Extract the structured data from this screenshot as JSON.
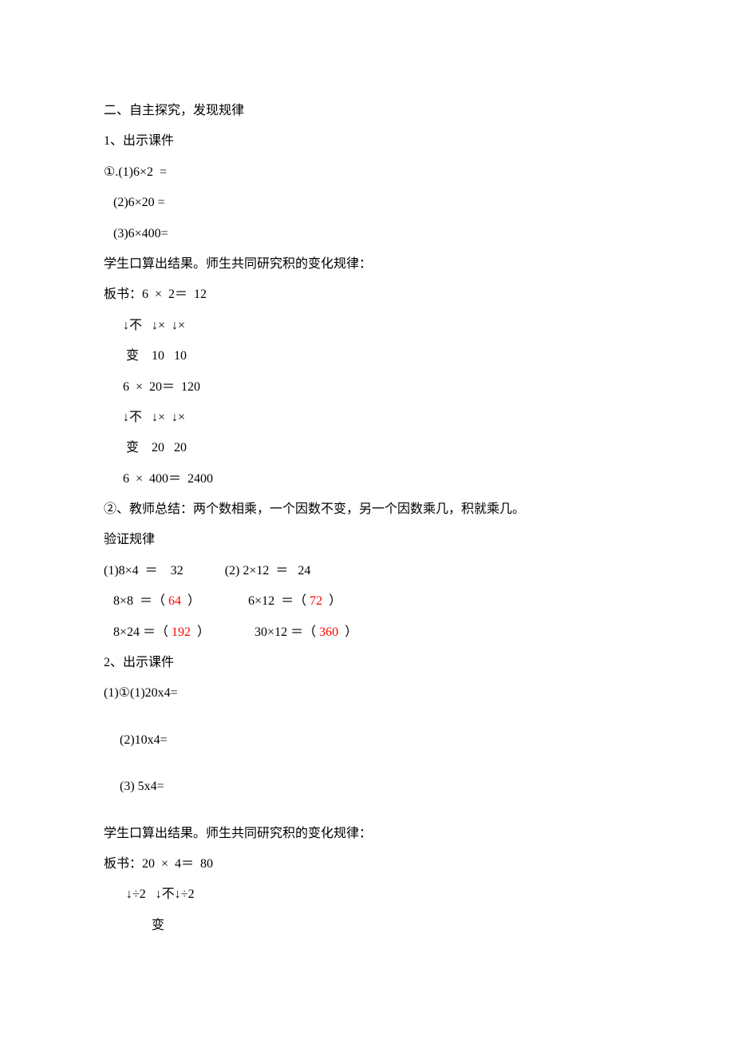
{
  "colors": {
    "text": "#000000",
    "answer": "#ff0000",
    "bg": "#ffffff"
  },
  "typography": {
    "font_family": "SimSun",
    "font_size_pt": 12,
    "line_height": 2.4
  },
  "section2": {
    "heading": "二、自主探究，发现规律",
    "item1": {
      "title": "1、出示课件",
      "problems_label": "①.",
      "problems": [
        {
          "num": "(1)",
          "expr": "6×2  ="
        },
        {
          "num": "(2)",
          "expr": "6×20 ="
        },
        {
          "num": "(3)",
          "expr": "6×400="
        }
      ],
      "calc_note": "学生口算出结果。师生共同研究积的变化规律：",
      "board_label": "板书：",
      "board_lines": [
        "6  ×  2＝  12",
        "↓不   ↓×  ↓×",
        " 变    10   10",
        "6  ×  20＝  120",
        "↓不   ↓×  ↓×",
        " 变    20   20",
        "6  ×  400＝  2400"
      ],
      "summary": "②、教师总结：两个数相乘，一个因数不变，另一个因数乘几，积就乘几。",
      "verify_label": "验证规律",
      "verify": {
        "left": [
          {
            "pre": "(1)8×4  ＝    32",
            "ans": null,
            "post": ""
          },
          {
            "pre": "   8×8  ＝（ ",
            "ans": "64",
            "post": "  ）"
          },
          {
            "pre": "   8×24 ＝（ ",
            "ans": "192",
            "post": "  ）"
          }
        ],
        "right": [
          {
            "pre": "(2) 2×12  ＝   24",
            "ans": null,
            "post": ""
          },
          {
            "pre": "    6×12  ＝（ ",
            "ans": "72",
            "post": "  ）"
          },
          {
            "pre": "    30×12 ＝（ ",
            "ans": "360",
            "post": "  ）"
          }
        ]
      }
    },
    "item2": {
      "title": "2、出示课件",
      "problems_label": "(1)①",
      "problems": [
        {
          "num": "(1)",
          "expr": "20x4="
        },
        {
          "num": "(2)",
          "expr": "10x4="
        },
        {
          "num": "(3)",
          "expr": " 5x4="
        }
      ],
      "calc_note": "学生口算出结果。师生共同研究积的变化规律：",
      "board_label": "板书：",
      "board_lines": [
        "20  ×  4＝  80",
        " ↓÷2   ↓不↓÷2",
        "         变"
      ]
    }
  }
}
